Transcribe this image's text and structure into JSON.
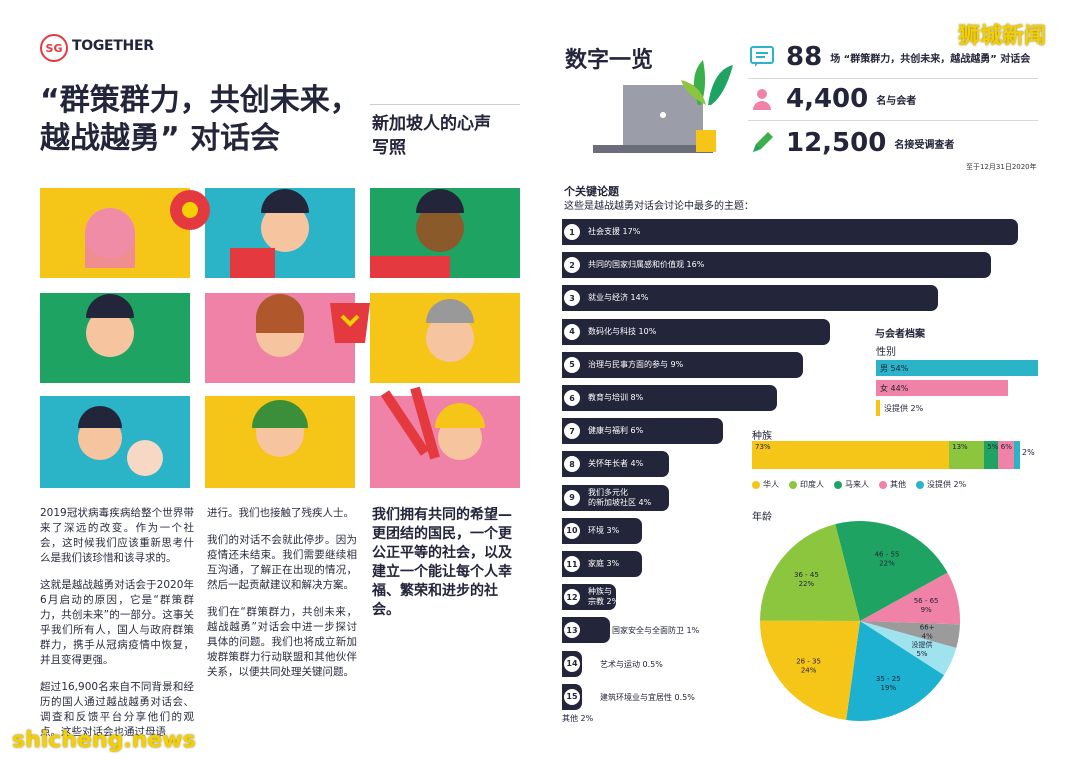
{
  "header": {
    "logo_mark": "SG",
    "logo_text": "TOGETHER"
  },
  "left": {
    "title": "“群策群力，共创未来，越战越勇” 对话会",
    "subtitle": "新加坡人的心声写照",
    "paragraphs_col1": [
      "2019冠状病毒疾病给整个世界带来了深远的改变。作为一个社会，这时候我们应该重新思考什么是我们该珍惜和该寻求的。",
      "这就是越战越勇对话会于2020年6月启动的原因，它是“群策群力，共创未来”的一部分。这事关乎我们所有人，国人与政府群策群力，携手从冠病疫情中恢复，并且变得更强。",
      "超过16,900名来自不同背景和经历的国人通过越战越勇对话会、调查和反馈平台分享他们的观点。这些对话会也通过母语"
    ],
    "paragraphs_col2": [
      "进行。我们也接触了残疾人士。",
      "我们的对话不会就此停步。因为疫情还未结束。我们需要继续相互沟通，了解正在出现的情况，然后一起贡献建议和解决方案。",
      "我们在“群策群力，共创未来，越战越勇”对话会中进一步探讨具体的问题。我们也将成立新加坡群策群力行动联盟和其他伙伴关系，以便共同处理关键问题。"
    ],
    "quote": "我们拥有共同的希望—更团结的国民，一个更公正平等的社会，以及建立一个能让每个人幸福、繁荣和进步的社会。"
  },
  "right": {
    "heading": "数字一览",
    "stats": [
      {
        "icon": "chat-icon",
        "value": "88",
        "label": "场 “群策群力，共创未来，越战越勇” 对话会",
        "color": "#2bb3c8"
      },
      {
        "icon": "person-icon",
        "value": "4,400",
        "label": "名与会者",
        "color": "#ef82a6"
      },
      {
        "icon": "pencil-icon",
        "value": "12,500",
        "label": "名接受调查者",
        "color": "#3bb04a"
      }
    ],
    "as_of": "至于12月31日2020年",
    "topics_title": "个关键论题",
    "topics_subtitle": "这些是越战越勇对话会讨论中最多的主题：",
    "other_label": "其他 2%",
    "profile_title": "与会者档案",
    "gender_label": "性别",
    "race_label": "种族",
    "race_small_label": "2%",
    "age_label": "年龄"
  },
  "chart_data": [
    {
      "type": "bar",
      "title": "个关键论题",
      "categories": [
        "社会支援",
        "共同的国家归属感和价值观",
        "就业与经济",
        "数码化与科技",
        "治理与民事方面的参与",
        "教育与培训",
        "健康与福利",
        "关怀年长者",
        "我们多元化的新加坡社区",
        "环境",
        "家庭",
        "种族与宗教",
        "国家安全与全面防卫",
        "艺术与运动",
        "建筑环境业与宜居性"
      ],
      "values": [
        17,
        16,
        14,
        10,
        9,
        8,
        6,
        4,
        4,
        3,
        3,
        2,
        1,
        0.5,
        0.5
      ],
      "value_labels": [
        "17%",
        "16%",
        "14%",
        "10%",
        "9%",
        "8%",
        "6%",
        "4%",
        "4%",
        "3%",
        "3%",
        "2%",
        "1%",
        "0.5%",
        "0.5%"
      ],
      "multiline": [
        false,
        false,
        false,
        false,
        false,
        false,
        false,
        false,
        true,
        false,
        false,
        true,
        false,
        false,
        false
      ],
      "inside": [
        true,
        true,
        true,
        true,
        true,
        true,
        true,
        true,
        true,
        true,
        true,
        true,
        false,
        false,
        false
      ],
      "line1": [
        "",
        "",
        "",
        "",
        "",
        "",
        "",
        "",
        "我们多元化",
        "",
        "",
        "种族与",
        "",
        "",
        ""
      ],
      "line2": [
        "",
        "",
        "",
        "",
        "",
        "",
        "",
        "",
        "的新加坡社区 4%",
        "",
        "",
        "宗教 2%",
        "",
        "",
        ""
      ]
    },
    {
      "type": "bar",
      "title": "性别",
      "categories": [
        "男",
        "女",
        "没提供"
      ],
      "values": [
        54,
        44,
        2
      ],
      "labels": [
        "男 54%",
        "女 44%",
        "没提供 2%"
      ],
      "colors": [
        "#2bb3c8",
        "#ef82a6",
        "#f5c518"
      ]
    },
    {
      "type": "bar",
      "title": "种族",
      "categories": [
        "华人",
        "印度人",
        "马来人",
        "其他",
        "没提供"
      ],
      "values": [
        73,
        13,
        5,
        6,
        2
      ],
      "labels": [
        "73%",
        "13%",
        "5%",
        "6%",
        ""
      ],
      "legend": [
        "华人",
        "印度人",
        "马来人",
        "其他",
        "没提供 2%"
      ],
      "colors": [
        "#f5c518",
        "#8cc63e",
        "#1fa362",
        "#ef82a6",
        "#2bb3c8"
      ]
    },
    {
      "type": "pie",
      "title": "年龄",
      "categories": [
        "46 - 55",
        "56 - 65",
        "66+",
        "没提供",
        "35 - 25",
        "26 - 35",
        "36 - 45"
      ],
      "values": [
        22,
        9,
        4,
        5,
        19,
        24,
        22
      ],
      "labels": [
        "22%",
        "9%",
        "4%",
        "5%",
        "19%",
        "24%",
        "22%"
      ],
      "colors": [
        "#1fa362",
        "#ef82a6",
        "#9b9b9b",
        "#9fe3ef",
        "#1cb0d1",
        "#f5c518",
        "#8cc63e"
      ]
    }
  ],
  "watermarks": {
    "top": "狮城新闻",
    "bottom": "shicheng.news"
  }
}
